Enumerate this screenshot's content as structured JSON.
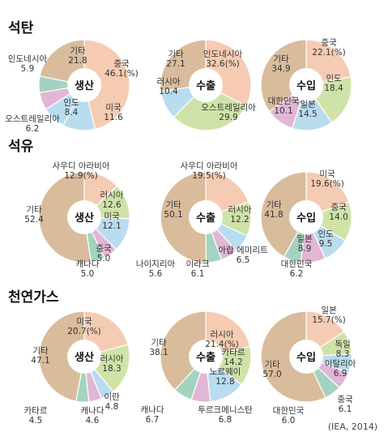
{
  "source": "(IEA, 2014)",
  "colors": {
    "china": "#f6cbb3",
    "indonesia": "#cfe3a8",
    "australia": "#cfe3a8",
    "india": "#b9dcef",
    "usa": "#b9dcef",
    "russia": "#cfe3a8",
    "korea": "#a3d3c0",
    "japan": "#b9dcef",
    "saudi": "#f6cbb3",
    "canada": "#e2b6d6",
    "uae": "#b9dcef",
    "iraq": "#e2b6d6",
    "nigeria": "#a3d3c0",
    "qatar": "#cfe3a8",
    "norway": "#b9dcef",
    "turkmen": "#e2b6d6",
    "germany": "#cfe3a8",
    "italy": "#b9dcef",
    "iran": "#e2b6d6",
    "other": "#d9bc9c",
    "hole": "#ffffff"
  },
  "chart_data": [
    {
      "section": "석탄",
      "type": "pie",
      "charts": [
        {
          "center": "생산",
          "slices": [
            {
              "label": "중국",
              "value": 46.1,
              "text": "46.1(%)",
              "color": "china"
            },
            {
              "label": "미국",
              "value": 11.6,
              "text": "11.6",
              "color": "usa"
            },
            {
              "label": "인도",
              "value": 8.4,
              "text": "8.4",
              "color": "india"
            },
            {
              "label": "오스트레일리아",
              "value": 6.2,
              "text": "6.2",
              "color": "canada"
            },
            {
              "label": "인도네시아",
              "value": 5.9,
              "text": "5.9",
              "color": "korea"
            },
            {
              "label": "기타",
              "value": 21.8,
              "text": "21.8",
              "color": "other"
            }
          ]
        },
        {
          "center": "수출",
          "slices": [
            {
              "label": "인도네시아",
              "value": 32.6,
              "text": "32.6(%)",
              "color": "china"
            },
            {
              "label": "오스트레일리아",
              "value": 29.9,
              "text": "29.9",
              "color": "australia"
            },
            {
              "label": "러시아",
              "value": 10.4,
              "text": "10.4",
              "color": "india"
            },
            {
              "label": "기타",
              "value": 27.1,
              "text": "27.1",
              "color": "other"
            }
          ]
        },
        {
          "center": "수입",
          "slices": [
            {
              "label": "중국",
              "value": 22.1,
              "text": "22.1(%)",
              "color": "china"
            },
            {
              "label": "인도",
              "value": 18.4,
              "text": "18.4",
              "color": "australia"
            },
            {
              "label": "일본",
              "value": 14.5,
              "text": "14.5",
              "color": "india"
            },
            {
              "label": "대한민국",
              "value": 10.1,
              "text": "10.1",
              "color": "canada"
            },
            {
              "label": "기타",
              "value": 34.9,
              "text": "34.9",
              "color": "other"
            }
          ]
        }
      ]
    },
    {
      "section": "석유",
      "type": "pie",
      "charts": [
        {
          "center": "생산",
          "slices": [
            {
              "label": "사우디 아라비아",
              "value": 12.9,
              "text": "12.9(%)",
              "color": "saudi"
            },
            {
              "label": "러시아",
              "value": 12.6,
              "text": "12.6",
              "color": "russia"
            },
            {
              "label": "미국",
              "value": 12.1,
              "text": "12.1",
              "color": "usa"
            },
            {
              "label": "중국",
              "value": 5.0,
              "text": "5.0",
              "color": "canada"
            },
            {
              "label": "캐나다",
              "value": 5.0,
              "text": "5.0",
              "color": "korea"
            },
            {
              "label": "기타",
              "value": 52.4,
              "text": "52.4",
              "color": "other"
            }
          ]
        },
        {
          "center": "수출",
          "slices": [
            {
              "label": "사우디 아라비아",
              "value": 19.5,
              "text": "19.5(%)",
              "color": "saudi"
            },
            {
              "label": "러시아",
              "value": 12.2,
              "text": "12.2",
              "color": "russia"
            },
            {
              "label": "아랍 에미리트",
              "value": 6.5,
              "text": "6.5",
              "color": "uae"
            },
            {
              "label": "이라크",
              "value": 6.1,
              "text": "6.1",
              "color": "iraq"
            },
            {
              "label": "나이지리아",
              "value": 5.6,
              "text": "5.6",
              "color": "nigeria"
            },
            {
              "label": "기타",
              "value": 50.1,
              "text": "50.1",
              "color": "other"
            }
          ]
        },
        {
          "center": "수입",
          "slices": [
            {
              "label": "미국",
              "value": 19.6,
              "text": "19.6(%)",
              "color": "saudi"
            },
            {
              "label": "중국",
              "value": 14.0,
              "text": "14.0",
              "color": "russia"
            },
            {
              "label": "인도",
              "value": 9.5,
              "text": "9.5",
              "color": "india"
            },
            {
              "label": "일본",
              "value": 8.9,
              "text": "8.9",
              "color": "canada"
            },
            {
              "label": "대한민국",
              "value": 6.2,
              "text": "6.2",
              "color": "korea"
            },
            {
              "label": "기타",
              "value": 41.8,
              "text": "41.8",
              "color": "other"
            }
          ]
        }
      ]
    },
    {
      "section": "천연가스",
      "type": "pie",
      "charts": [
        {
          "center": "생산",
          "slices": [
            {
              "label": "미국",
              "value": 20.7,
              "text": "20.7(%)",
              "color": "saudi"
            },
            {
              "label": "러시아",
              "value": 18.3,
              "text": "18.3",
              "color": "russia"
            },
            {
              "label": "이란",
              "value": 4.8,
              "text": "4.8",
              "color": "uae"
            },
            {
              "label": "캐나다",
              "value": 4.6,
              "text": "4.6",
              "color": "canada"
            },
            {
              "label": "카타르",
              "value": 4.5,
              "text": "4.5",
              "color": "korea"
            },
            {
              "label": "기타",
              "value": 47.1,
              "text": "47.1",
              "color": "other"
            }
          ]
        },
        {
          "center": "수출",
          "slices": [
            {
              "label": "러시아",
              "value": 21.4,
              "text": "21.4(%)",
              "color": "saudi"
            },
            {
              "label": "카타르",
              "value": 14.2,
              "text": "14.2",
              "color": "qatar"
            },
            {
              "label": "노르웨이",
              "value": 12.8,
              "text": "12.8",
              "color": "norway"
            },
            {
              "label": "투르크메니스탄",
              "value": 6.8,
              "text": "6.8",
              "color": "turkmen"
            },
            {
              "label": "캐나다",
              "value": 6.7,
              "text": "6.7",
              "color": "nigeria"
            },
            {
              "label": "기타",
              "value": 38.1,
              "text": "38.1",
              "color": "other"
            }
          ]
        },
        {
          "center": "수입",
          "slices": [
            {
              "label": "일본",
              "value": 15.7,
              "text": "15.7(%)",
              "color": "saudi"
            },
            {
              "label": "독일",
              "value": 8.3,
              "text": "8.3",
              "color": "germany"
            },
            {
              "label": "이탈리아",
              "value": 6.9,
              "text": "6.9",
              "color": "italy"
            },
            {
              "label": "중국",
              "value": 6.1,
              "text": "6.1",
              "color": "canada"
            },
            {
              "label": "대한민국",
              "value": 6.0,
              "text": "6.0",
              "color": "korea"
            },
            {
              "label": "기타",
              "value": 57.0,
              "text": "57.0",
              "color": "other"
            }
          ]
        }
      ]
    }
  ]
}
